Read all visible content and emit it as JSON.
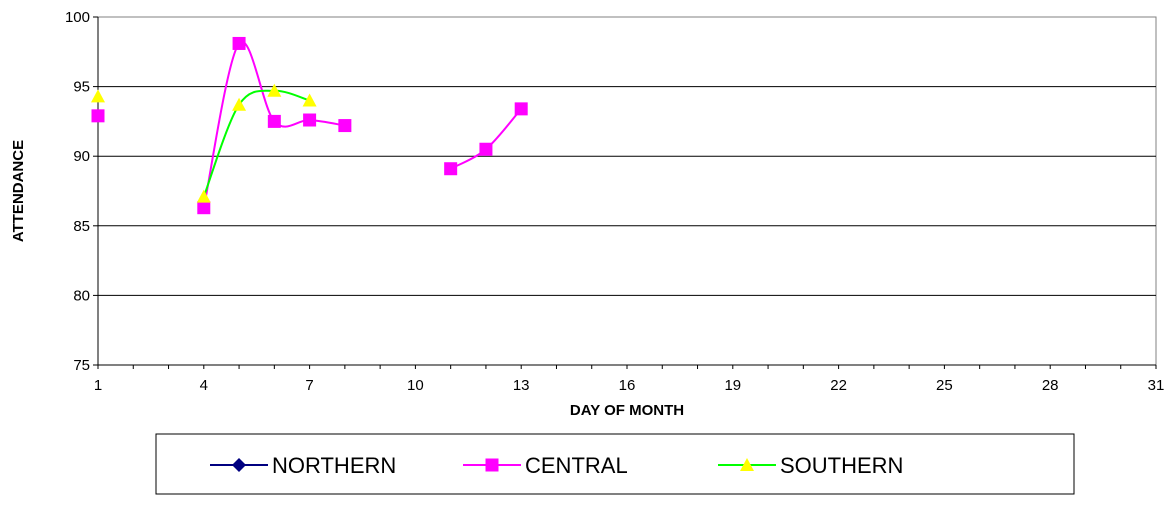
{
  "chart_data": {
    "type": "line",
    "title": "",
    "xlabel": "DAY OF MONTH",
    "ylabel": "ATTENDANCE",
    "xlim": [
      1,
      31
    ],
    "ylim": [
      75,
      100
    ],
    "x_ticks": [
      1,
      4,
      7,
      10,
      13,
      16,
      19,
      22,
      25,
      28,
      31
    ],
    "y_ticks": [
      75,
      80,
      85,
      90,
      95,
      100
    ],
    "grid": "horizontal",
    "smoothed": true,
    "legend": "bottom",
    "series": [
      {
        "name": "NORTHERN",
        "color": "#000080",
        "marker": "diamond",
        "segments": []
      },
      {
        "name": "CENTRAL",
        "color": "#FF00FF",
        "marker": "square",
        "segments": [
          [
            [
              1,
              92.9
            ]
          ],
          [
            [
              4,
              86.3
            ],
            [
              5,
              98.1
            ],
            [
              6,
              92.5
            ],
            [
              7,
              92.6
            ],
            [
              8,
              92.2
            ]
          ],
          [
            [
              11,
              89.1
            ],
            [
              12,
              90.5
            ],
            [
              13,
              93.4
            ]
          ]
        ]
      },
      {
        "name": "SOUTHERN",
        "color": "#00FF00",
        "marker": "triangle",
        "marker_color": "#FFFF00",
        "segments": [
          [
            [
              1,
              94.3
            ]
          ],
          [
            [
              4,
              87.1
            ],
            [
              5,
              93.7
            ],
            [
              6,
              94.7
            ],
            [
              7,
              94.0
            ]
          ]
        ]
      }
    ]
  }
}
